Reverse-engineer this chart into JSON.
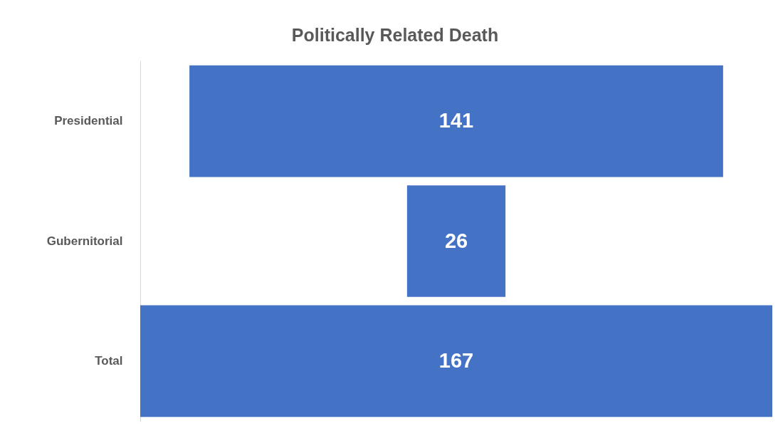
{
  "chart_data": {
    "type": "other",
    "title": "Politically Related Death",
    "categories": [
      "Presidential",
      "Gubernitorial",
      "Total"
    ],
    "values": [
      141,
      26,
      167
    ],
    "color": "#4472c4",
    "data_labels": true
  }
}
